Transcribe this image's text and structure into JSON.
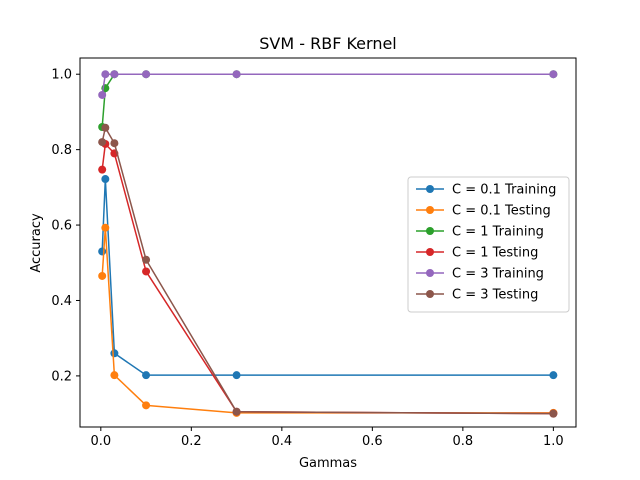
{
  "chart_data": {
    "type": "line",
    "title": "SVM - RBF Kernel",
    "xlabel": "Gammas",
    "ylabel": "Accuracy",
    "xlim": [
      -0.046,
      1.05
    ],
    "ylim": [
      0.0645,
      1.043
    ],
    "x_ticks": [
      0.0,
      0.2,
      0.4,
      0.6,
      0.8,
      1.0
    ],
    "x_tick_labels": [
      "0.0",
      "0.2",
      "0.4",
      "0.6",
      "0.8",
      "1.0"
    ],
    "y_ticks": [
      0.2,
      0.4,
      0.6,
      0.8,
      1.0
    ],
    "y_tick_labels": [
      "0.2",
      "0.4",
      "0.6",
      "0.8",
      "1.0"
    ],
    "x": [
      0.003,
      0.01,
      0.03,
      0.1,
      0.3,
      1.0
    ],
    "grid": false,
    "legend_position": "center-right",
    "series": [
      {
        "name": "C = 0.1 Training",
        "color": "#1f77b4",
        "values": [
          0.53,
          0.722,
          0.26,
          0.202,
          0.202,
          0.202
        ]
      },
      {
        "name": "C = 0.1 Testing",
        "color": "#ff7f0e",
        "values": [
          0.465,
          0.593,
          0.202,
          0.122,
          0.102,
          0.102
        ]
      },
      {
        "name": "C = 1 Training",
        "color": "#2ca02c",
        "values": [
          0.86,
          0.963,
          1.0,
          1.0,
          1.0,
          1.0
        ]
      },
      {
        "name": "C = 1 Testing",
        "color": "#d62728",
        "values": [
          0.747,
          0.815,
          0.79,
          0.477,
          0.105,
          0.1
        ]
      },
      {
        "name": "C = 3 Training",
        "color": "#9467bd",
        "values": [
          0.945,
          1.0,
          1.0,
          1.0,
          1.0,
          1.0
        ]
      },
      {
        "name": "C = 3 Testing",
        "color": "#8c564b",
        "values": [
          0.82,
          0.858,
          0.817,
          0.508,
          0.105,
          0.1
        ]
      }
    ]
  }
}
